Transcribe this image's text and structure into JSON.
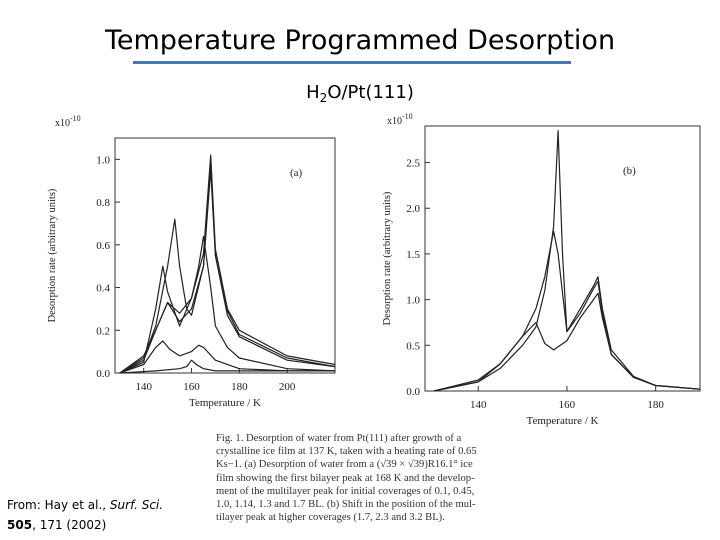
{
  "slide": {
    "title": "Temperature Programmed Desorption",
    "subtitle_main": "H",
    "subtitle_sub": "2",
    "subtitle_rest": "O/Pt(111)",
    "accent_color": "#4a78b0"
  },
  "chart_data": [
    {
      "type": "line",
      "panel_label": "(a)",
      "scale_label": "x10",
      "scale_exponent": "-10",
      "xlabel": "Temperature / K",
      "ylabel": "Desorption rate (arbitrary units)",
      "xlim": [
        128,
        220
      ],
      "ylim": [
        0,
        1.1
      ],
      "xticks": [
        140,
        160,
        180,
        200
      ],
      "xtick_labels": [
        "140",
        "160",
        "180",
        "200"
      ],
      "yticks": [
        0.0,
        0.2,
        0.4,
        0.6,
        0.8,
        1.0
      ],
      "ytick_labels": [
        "0.0",
        "0.2",
        "0.4",
        "0.6",
        "0.8",
        "1.0"
      ],
      "series": [
        {
          "name": "0.1 BL",
          "x": [
            130,
            145,
            155,
            158,
            160,
            162,
            165,
            170,
            180,
            200,
            220
          ],
          "y": [
            0.0,
            0.01,
            0.02,
            0.03,
            0.06,
            0.04,
            0.02,
            0.01,
            0.01,
            0.01,
            0.01
          ]
        },
        {
          "name": "0.45 BL",
          "x": [
            130,
            140,
            145,
            148,
            151,
            155,
            160,
            163,
            165,
            170,
            180,
            200,
            220
          ],
          "y": [
            0.0,
            0.04,
            0.12,
            0.15,
            0.11,
            0.08,
            0.1,
            0.13,
            0.12,
            0.06,
            0.02,
            0.01,
            0.01
          ]
        },
        {
          "name": "1.0 BL",
          "x": [
            130,
            140,
            145,
            148,
            150,
            155,
            160,
            163,
            165,
            168,
            170,
            175,
            180,
            200,
            220
          ],
          "y": [
            0.0,
            0.05,
            0.3,
            0.5,
            0.38,
            0.22,
            0.35,
            0.5,
            0.64,
            0.4,
            0.22,
            0.12,
            0.07,
            0.02,
            0.01
          ]
        },
        {
          "name": "1.14 BL",
          "x": [
            130,
            140,
            145,
            150,
            155,
            160,
            165,
            168,
            170,
            175,
            180,
            200,
            220
          ],
          "y": [
            0.0,
            0.06,
            0.2,
            0.33,
            0.24,
            0.3,
            0.5,
            0.95,
            0.55,
            0.27,
            0.17,
            0.06,
            0.03
          ]
        },
        {
          "name": "1.3 BL",
          "x": [
            130,
            140,
            145,
            150,
            153,
            155,
            158,
            160,
            165,
            168,
            170,
            175,
            180,
            200,
            220
          ],
          "y": [
            0.0,
            0.07,
            0.22,
            0.5,
            0.72,
            0.5,
            0.3,
            0.27,
            0.5,
            1.0,
            0.55,
            0.29,
            0.18,
            0.07,
            0.03
          ]
        },
        {
          "name": "1.7 BL",
          "x": [
            130,
            140,
            145,
            150,
            155,
            160,
            165,
            168,
            170,
            175,
            180,
            200,
            220
          ],
          "y": [
            0.0,
            0.08,
            0.2,
            0.33,
            0.28,
            0.35,
            0.56,
            1.02,
            0.58,
            0.3,
            0.2,
            0.08,
            0.04
          ]
        }
      ]
    },
    {
      "type": "line",
      "panel_label": "(b)",
      "scale_label": "x10",
      "scale_exponent": "-10",
      "xlabel": "Temperature / K",
      "ylabel": "Desorption rate (arbitrary units)",
      "xlim": [
        128,
        190
      ],
      "ylim": [
        0,
        2.9
      ],
      "xticks": [
        140,
        160,
        180
      ],
      "xtick_labels": [
        "140",
        "160",
        "180"
      ],
      "yticks": [
        0.0,
        0.5,
        1.0,
        1.5,
        2.0,
        2.5
      ],
      "ytick_labels": [
        "0.0",
        "0.5",
        "1.0",
        "1.5",
        "2.0",
        "2.5"
      ],
      "series": [
        {
          "name": "1.7 BL",
          "x": [
            130,
            140,
            145,
            150,
            153,
            155,
            157,
            160,
            163,
            166,
            167,
            168,
            170,
            175,
            180,
            190
          ],
          "y": [
            0.0,
            0.1,
            0.3,
            0.6,
            0.75,
            0.52,
            0.45,
            0.55,
            0.8,
            1.0,
            1.07,
            0.8,
            0.4,
            0.15,
            0.06,
            0.02
          ]
        },
        {
          "name": "2.3 BL",
          "x": [
            130,
            140,
            145,
            150,
            153,
            155,
            157,
            158,
            160,
            163,
            166,
            167,
            168,
            170,
            175,
            180,
            190
          ],
          "y": [
            0.0,
            0.12,
            0.3,
            0.6,
            0.9,
            1.25,
            1.75,
            1.5,
            0.65,
            0.85,
            1.12,
            1.2,
            0.85,
            0.4,
            0.15,
            0.06,
            0.02
          ]
        },
        {
          "name": "3.2 BL",
          "x": [
            130,
            140,
            145,
            150,
            153,
            155,
            157,
            158,
            159,
            160,
            163,
            166,
            167,
            168,
            170,
            175,
            180,
            190
          ],
          "y": [
            0.0,
            0.1,
            0.25,
            0.5,
            0.7,
            1.1,
            1.8,
            2.85,
            1.5,
            0.65,
            0.9,
            1.15,
            1.25,
            0.9,
            0.45,
            0.16,
            0.06,
            0.02
          ]
        }
      ]
    }
  ],
  "caption": {
    "lines": [
      "Fig. 1. Desorption of water from Pt(111) after growth of a",
      "crystalline ice film at 137 K, taken with a heating rate of 0.65",
      "Ks−1. (a) Desorption of water from a (√39 × √39)R16.1° ice",
      "film showing the first bilayer peak at 168 K and the develop-",
      "ment of the multilayer peak for initial coverages of 0.1, 0.45,",
      "1.0, 1.14, 1.3 and 1.7 BL. (b) Shift in the position of the mul-",
      "tilayer peak at higher coverages (1.7, 2.3 and 3.2 BL)."
    ]
  },
  "citation": {
    "prefix": "From: Hay et al., ",
    "journal": "Surf. Sci.",
    "volume": "505",
    "rest": ", 171 (2002)"
  }
}
